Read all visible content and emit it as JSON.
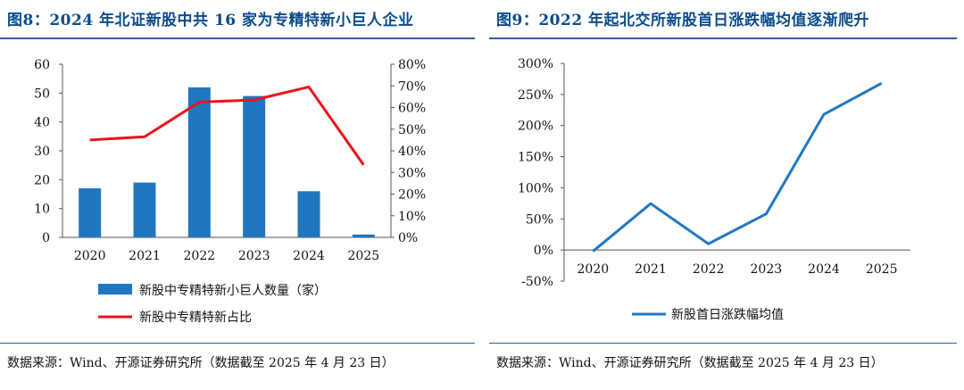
{
  "left": {
    "title": "图8：2024 年北证新股中共 16 家为专精特新小巨人企业",
    "source": "数据来源：Wind、开源证券研究所（数据截至 2025 年 4 月 23 日）"
  },
  "right": {
    "title": "图9：2022 年起北交所新股首日涨跌幅均值逐渐爬升",
    "source": "数据来源：Wind、开源证券研究所（数据截至 2025 年 4 月 23 日）"
  },
  "chart_data": [
    {
      "type": "bar+line",
      "categories": [
        "2020",
        "2021",
        "2022",
        "2023",
        "2024",
        "2025"
      ],
      "series": [
        {
          "name": "新股中专精特新小巨人数量（家）",
          "type": "bar",
          "axis": "left",
          "color": "#1f77c0",
          "values": [
            17,
            19,
            52,
            49,
            16,
            1
          ]
        },
        {
          "name": "新股中专精特新占比",
          "type": "line",
          "axis": "right",
          "color": "#e8141c",
          "values": [
            0.45,
            0.465,
            0.625,
            0.635,
            0.695,
            0.335
          ]
        }
      ],
      "ylim_left": [
        0,
        60
      ],
      "yticks_left": [
        "0",
        "10",
        "20",
        "30",
        "40",
        "50",
        "60"
      ],
      "ylim_right": [
        0,
        0.8
      ],
      "yticks_right": [
        "0%",
        "10%",
        "20%",
        "30%",
        "40%",
        "50%",
        "60%",
        "70%",
        "80%"
      ],
      "legend": "bottom",
      "grid": false
    },
    {
      "type": "line",
      "categories": [
        "2020",
        "2021",
        "2022",
        "2023",
        "2024",
        "2025"
      ],
      "series": [
        {
          "name": "新股首日涨跌幅均值",
          "color": "#1f77c0",
          "values": [
            -0.02,
            0.745,
            0.1,
            0.58,
            2.18,
            2.68
          ]
        }
      ],
      "ylim": [
        -0.5,
        3.0
      ],
      "yticks": [
        "-50%",
        "0%",
        "50%",
        "100%",
        "150%",
        "200%",
        "250%",
        "300%"
      ],
      "legend": "bottom",
      "grid": false
    }
  ]
}
